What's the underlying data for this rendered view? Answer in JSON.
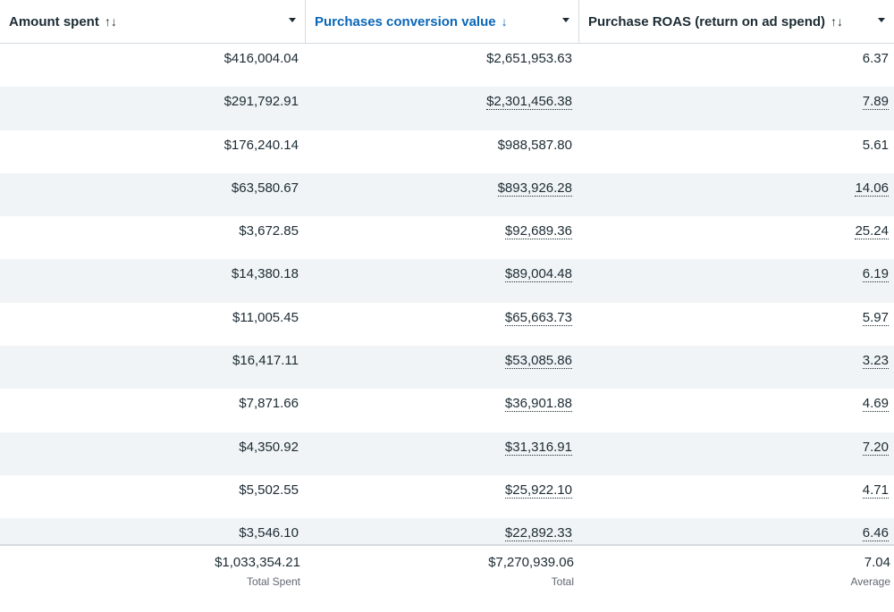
{
  "headers": [
    {
      "label": "Amount spent",
      "sort_icon": "↑↓"
    },
    {
      "label": "Purchases conversion value",
      "sort_icon": "↓"
    },
    {
      "label": "Purchase ROAS (return on ad spend)",
      "sort_icon": "↑↓"
    }
  ],
  "colors": {
    "active_header": "#0a66b7",
    "stripe": "#f1f4f6",
    "text": "#1c2b33"
  },
  "rows": [
    {
      "spent": "$416,004.04",
      "value": "$2,651,953.63",
      "roas": "6.37"
    },
    {
      "spent": "$291,792.91",
      "value": "$2,301,456.38",
      "roas": "7.89"
    },
    {
      "spent": "$176,240.14",
      "value": "$988,587.80",
      "roas": "5.61"
    },
    {
      "spent": "$63,580.67",
      "value": "$893,926.28",
      "roas": "14.06"
    },
    {
      "spent": "$3,672.85",
      "value": "$92,689.36",
      "roas": "25.24"
    },
    {
      "spent": "$14,380.18",
      "value": "$89,004.48",
      "roas": "6.19"
    },
    {
      "spent": "$11,005.45",
      "value": "$65,663.73",
      "roas": "5.97"
    },
    {
      "spent": "$16,417.11",
      "value": "$53,085.86",
      "roas": "3.23"
    },
    {
      "spent": "$7,871.66",
      "value": "$36,901.88",
      "roas": "4.69"
    },
    {
      "spent": "$4,350.92",
      "value": "$31,316.91",
      "roas": "7.20"
    },
    {
      "spent": "$5,502.55",
      "value": "$25,922.10",
      "roas": "4.71"
    },
    {
      "spent": "$3,546.10",
      "value": "$22,892.33",
      "roas": "6.46"
    }
  ],
  "totals": {
    "spent": "$1,033,354.21",
    "spent_label": "Total Spent",
    "value": "$7,270,939.06",
    "value_label": "Total",
    "roas": "7.04",
    "roas_label": "Average"
  }
}
